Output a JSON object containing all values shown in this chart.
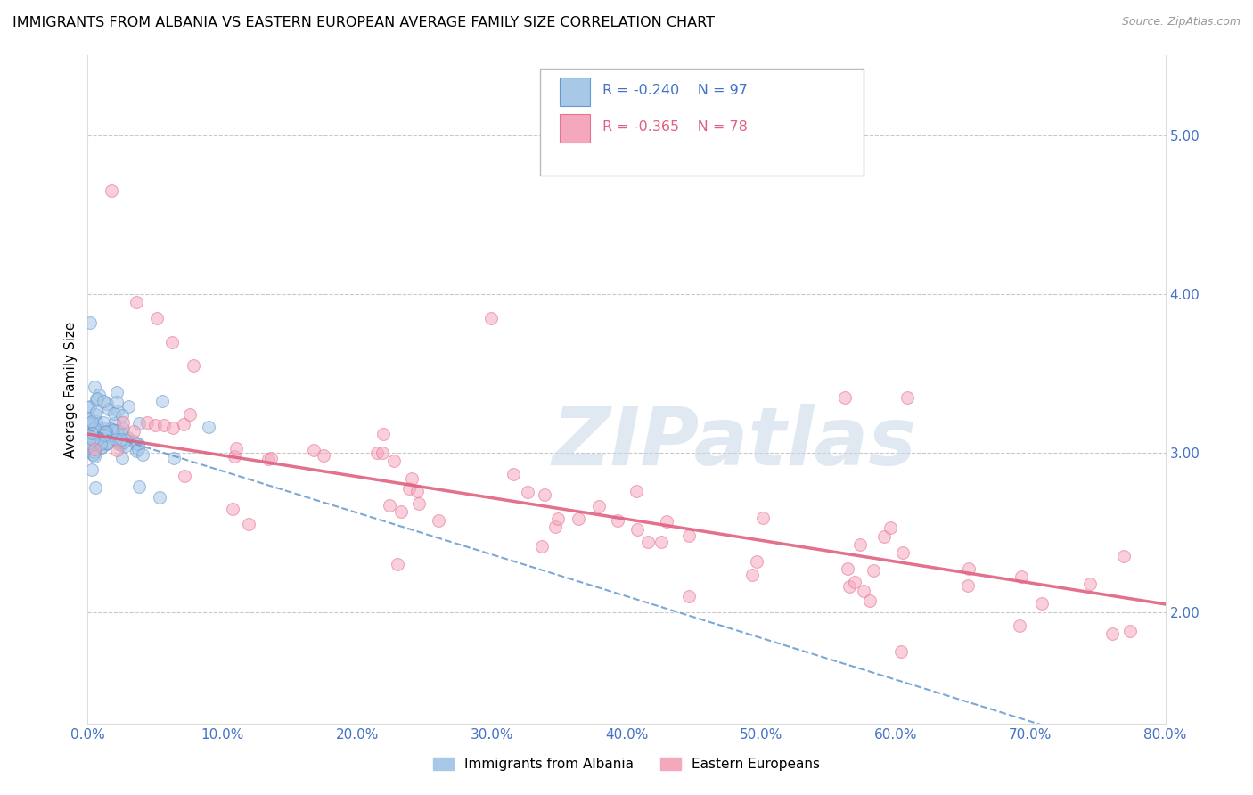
{
  "title": "IMMIGRANTS FROM ALBANIA VS EASTERN EUROPEAN AVERAGE FAMILY SIZE CORRELATION CHART",
  "source": "Source: ZipAtlas.com",
  "ylabel": "Average Family Size",
  "xlim": [
    0.0,
    80.0
  ],
  "ylim": [
    1.3,
    5.5
  ],
  "yticks": [
    2.0,
    3.0,
    4.0,
    5.0
  ],
  "xticks": [
    0.0,
    10.0,
    20.0,
    30.0,
    40.0,
    50.0,
    60.0,
    70.0,
    80.0
  ],
  "xtick_labels": [
    "0.0%",
    "10.0%",
    "20.0%",
    "30.0%",
    "40.0%",
    "50.0%",
    "60.0%",
    "70.0%",
    "80.0%"
  ],
  "blue_color": "#a8c8e8",
  "pink_color": "#f4a8bc",
  "blue_edge": "#6699cc",
  "pink_edge": "#e87090",
  "legend_R_blue": "R = -0.240",
  "legend_N_blue": "N = 97",
  "legend_R_pink": "R = -0.365",
  "legend_N_pink": "N = 78",
  "legend_label_blue": "Immigrants from Albania",
  "legend_label_pink": "Eastern Europeans",
  "watermark": "ZIPatlas",
  "tick_color": "#4472c4",
  "title_fontsize": 11.5,
  "axis_label_fontsize": 11,
  "tick_fontsize": 11,
  "marker_size": 100,
  "marker_alpha": 0.55,
  "grid_color": "#bbbbbb",
  "trend_blue_color": "#6699cc",
  "trend_pink_color": "#e06080",
  "watermark_color": "#c8d8e8",
  "watermark_fontsize": 65,
  "background_color": "#ffffff"
}
